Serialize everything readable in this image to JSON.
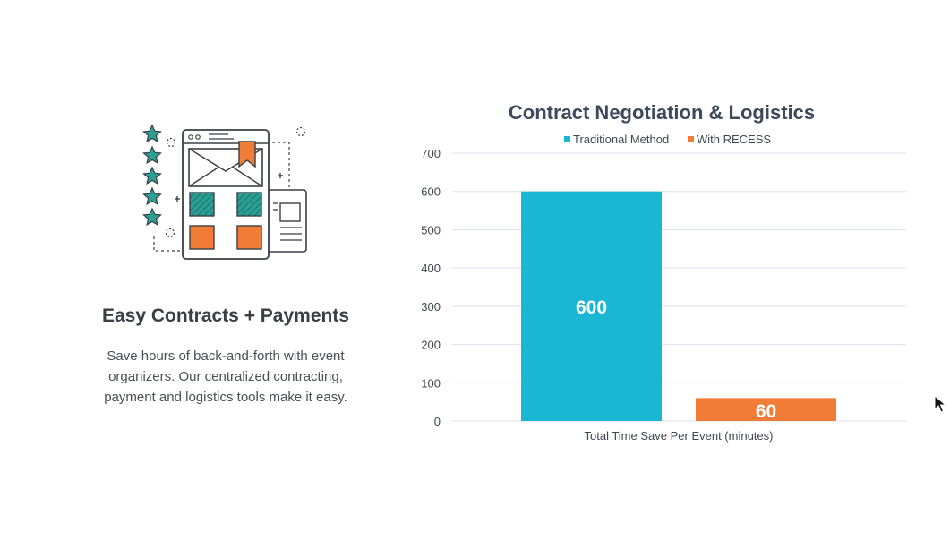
{
  "feature": {
    "title": "Easy Contracts + Payments",
    "description": "Save hours of back-and-forth with event organizers. Our centralized contracting, payment and logistics tools make it easy."
  },
  "colors": {
    "teal": "#1ab7d5",
    "orange": "#f07c35",
    "icon_teal": "#2a9f93",
    "icon_orange": "#f07c35",
    "icon_stroke": "#3b3f46",
    "title_text": "#3d4a5c",
    "axis_text": "#404650",
    "grid": "#dde2ec"
  },
  "chart_data": {
    "type": "bar",
    "title": "Contract Negotiation & Logistics",
    "xlabel": "Total Time Save Per Event (minutes)",
    "ylabel": "",
    "ylim": [
      0,
      700
    ],
    "yticks": [
      0,
      100,
      200,
      300,
      400,
      500,
      600,
      700
    ],
    "categories": [
      "Total Time Save Per Event (minutes)"
    ],
    "legend_position": "top-center",
    "grid": true,
    "series": [
      {
        "name": "Traditional Method",
        "values": [
          600
        ],
        "color": "#1ab7d5",
        "data_label": "600"
      },
      {
        "name": "With RECESS",
        "values": [
          60
        ],
        "color": "#f07c35",
        "data_label": "60"
      }
    ]
  }
}
